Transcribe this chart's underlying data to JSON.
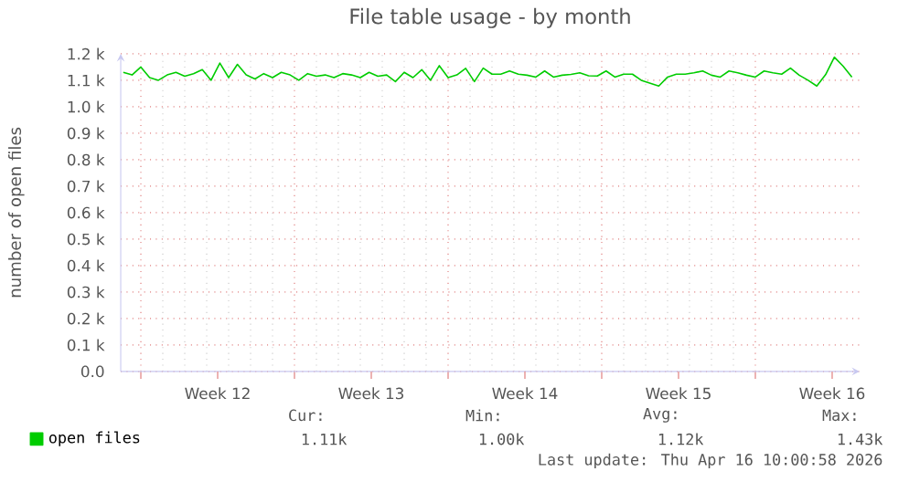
{
  "chart_data": {
    "type": "line",
    "title": "File table usage - by month",
    "ylabel": "number of open files",
    "x": [
      "2026-03-15T04:48",
      "2026-03-15T14:24",
      "2026-03-16T00:00",
      "2026-03-16T09:36",
      "2026-03-16T19:12",
      "2026-03-17T04:48",
      "2026-03-17T14:24",
      "2026-03-18T00:00",
      "2026-03-18T09:36",
      "2026-03-18T19:12",
      "2026-03-19T04:48",
      "2026-03-19T14:24",
      "2026-03-20T00:00",
      "2026-03-20T09:36",
      "2026-03-20T19:12",
      "2026-03-21T04:48",
      "2026-03-21T14:24",
      "2026-03-22T00:00",
      "2026-03-22T09:36",
      "2026-03-22T19:12",
      "2026-03-23T04:48",
      "2026-03-23T14:24",
      "2026-03-24T00:00",
      "2026-03-24T09:36",
      "2026-03-24T19:12",
      "2026-03-25T04:48",
      "2026-03-25T14:24",
      "2026-03-26T00:00",
      "2026-03-26T09:36",
      "2026-03-26T19:12",
      "2026-03-27T04:48",
      "2026-03-27T14:24",
      "2026-03-28T00:00",
      "2026-03-28T09:36",
      "2026-03-28T19:12",
      "2026-03-29T04:48",
      "2026-03-29T14:24",
      "2026-03-30T00:00",
      "2026-03-30T09:36",
      "2026-03-30T19:12",
      "2026-03-31T04:48",
      "2026-03-31T14:24",
      "2026-04-01T00:00",
      "2026-04-01T09:36",
      "2026-04-01T19:12",
      "2026-04-02T04:48",
      "2026-04-02T14:24",
      "2026-04-03T00:00",
      "2026-04-03T09:36",
      "2026-04-03T19:12",
      "2026-04-04T04:48",
      "2026-04-04T14:24",
      "2026-04-05T00:00",
      "2026-04-05T09:36",
      "2026-04-05T19:12",
      "2026-04-06T04:48",
      "2026-04-06T14:24",
      "2026-04-07T00:00",
      "2026-04-07T09:36",
      "2026-04-07T19:12",
      "2026-04-08T04:48",
      "2026-04-08T14:24",
      "2026-04-09T00:00",
      "2026-04-09T09:36",
      "2026-04-09T19:12",
      "2026-04-10T04:48",
      "2026-04-10T14:24",
      "2026-04-11T00:00",
      "2026-04-11T09:36",
      "2026-04-11T19:12",
      "2026-04-12T04:48",
      "2026-04-12T14:24",
      "2026-04-13T00:00",
      "2026-04-13T09:36",
      "2026-04-13T19:12",
      "2026-04-14T04:48",
      "2026-04-14T14:24",
      "2026-04-15T00:00",
      "2026-04-15T09:36",
      "2026-04-15T19:12",
      "2026-04-16T04:48",
      "2026-04-16T14:24",
      "2026-04-17T00:00",
      "2026-04-17T09:36"
    ],
    "series": [
      {
        "name": "open files",
        "color": "#00cc00",
        "values": [
          1130,
          1120,
          1150,
          1110,
          1100,
          1120,
          1130,
          1115,
          1125,
          1140,
          1100,
          1165,
          1110,
          1160,
          1120,
          1105,
          1125,
          1110,
          1130,
          1120,
          1100,
          1125,
          1115,
          1120,
          1110,
          1125,
          1120,
          1110,
          1130,
          1115,
          1120,
          1095,
          1130,
          1110,
          1140,
          1100,
          1155,
          1110,
          1120,
          1145,
          1095,
          1146,
          1123,
          1123,
          1135,
          1123,
          1119,
          1112,
          1135,
          1112,
          1119,
          1122,
          1128,
          1117,
          1116,
          1135,
          1112,
          1123,
          1123,
          1100,
          1089,
          1078,
          1112,
          1123,
          1123,
          1128,
          1135,
          1119,
          1112,
          1135,
          1128,
          1119,
          1112,
          1135,
          1128,
          1123,
          1146,
          1119,
          1100,
          1078,
          1121,
          1187,
          1153,
          1112
        ]
      }
    ],
    "xlim": [
      "2026-03-15T02:00",
      "2026-04-17T18:00"
    ],
    "xticks": [
      {
        "value": "2026-03-16",
        "label": null
      },
      {
        "value": "2026-03-19T12:00",
        "label": "Week 12"
      },
      {
        "value": "2026-03-23",
        "label": null
      },
      {
        "value": "2026-03-26T12:00",
        "label": "Week 13"
      },
      {
        "value": "2026-03-30",
        "label": null
      },
      {
        "value": "2026-04-02T12:00",
        "label": "Week 14"
      },
      {
        "value": "2026-04-06",
        "label": null
      },
      {
        "value": "2026-04-09T12:00",
        "label": "Week 15"
      },
      {
        "value": "2026-04-13",
        "label": null
      },
      {
        "value": "2026-04-16T12:00",
        "label": "Week 16"
      }
    ],
    "ylim": [
      0,
      1200
    ],
    "yticks": [
      {
        "value": 0,
        "label": "0.0"
      },
      {
        "value": 100,
        "label": "0.1 k"
      },
      {
        "value": 200,
        "label": "0.2 k"
      },
      {
        "value": 300,
        "label": "0.3 k"
      },
      {
        "value": 400,
        "label": "0.4 k"
      },
      {
        "value": 500,
        "label": "0.5 k"
      },
      {
        "value": 600,
        "label": "0.6 k"
      },
      {
        "value": 700,
        "label": "0.7 k"
      },
      {
        "value": 800,
        "label": "0.8 k"
      },
      {
        "value": 900,
        "label": "0.9 k"
      },
      {
        "value": 1000,
        "label": "1.0 k"
      },
      {
        "value": 1100,
        "label": "1.1 k"
      },
      {
        "value": 1200,
        "label": "1.2 k"
      }
    ],
    "grid": true,
    "legend": "bottom",
    "marker": "none",
    "line_style": "solid",
    "annotations": [
      "Cur:",
      "1.11k",
      "Min:",
      "1.00k",
      "Avg:",
      "1.12k",
      "Max:",
      "1.43k",
      "Last update: Thu Apr 16 10:00:58 2026"
    ]
  }
}
